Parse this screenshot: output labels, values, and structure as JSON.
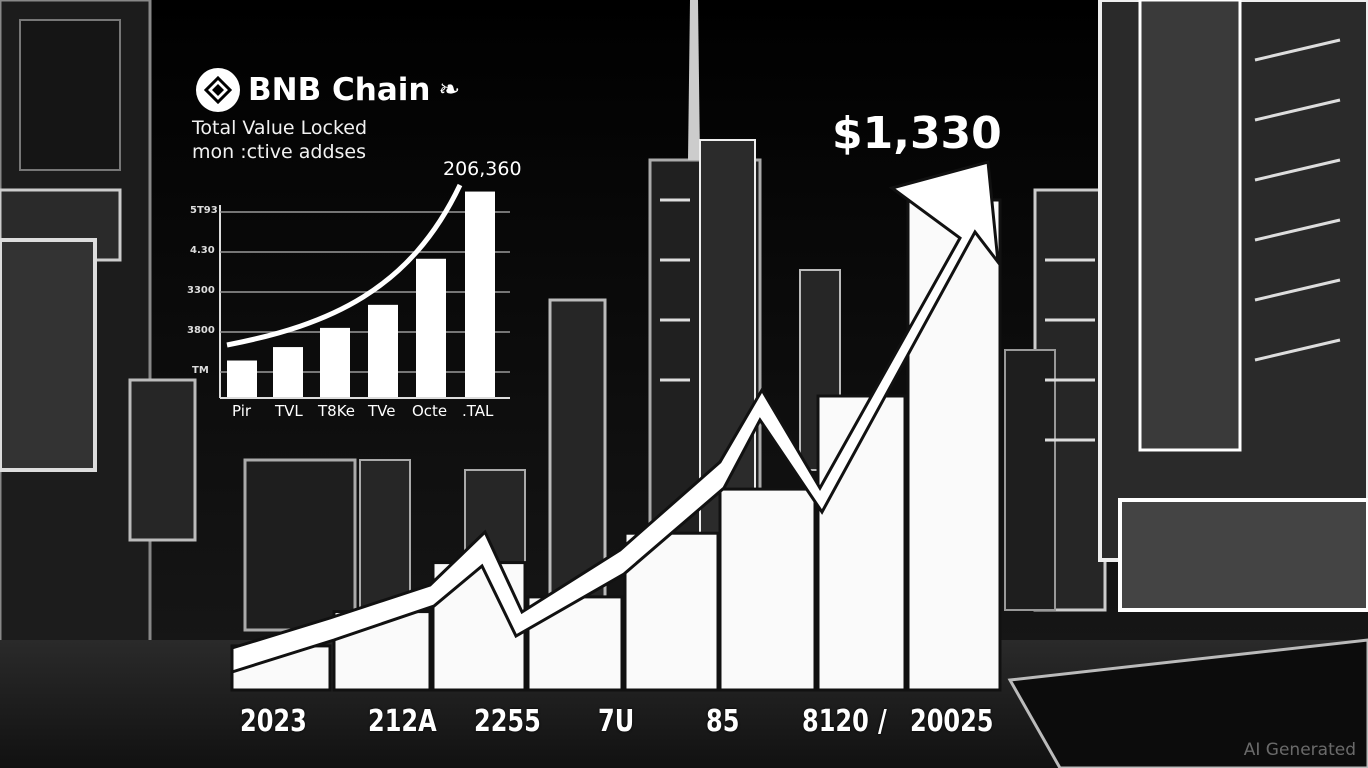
{
  "brand": {
    "name": "BNB Chain",
    "logo_icon": "bnb-diamond-logo",
    "accent": "#ffffff"
  },
  "subtitle_lines": [
    "Total Value Locked",
    "mon :ctive addses"
  ],
  "price_label": "$1,330",
  "small_chart": {
    "peak_label": "206,360",
    "y_ticks": [
      "5T93",
      "4.30",
      "3300",
      "3800",
      "TM"
    ],
    "categories": [
      "Pir",
      "TVL",
      "T8Ke",
      "TVe",
      "Octe",
      ".TAL"
    ],
    "bar_levels": [
      0.19,
      0.26,
      0.36,
      0.48,
      0.72,
      1.07
    ],
    "grid": true
  },
  "big_chart": {
    "x_labels": [
      "2023",
      "212A",
      "2255",
      "7U",
      "85",
      "8120",
      "/",
      "20025"
    ],
    "column_levels": [
      0.09,
      0.16,
      0.26,
      0.19,
      0.32,
      0.41,
      0.6,
      1.0
    ],
    "trend": "rising arrow"
  },
  "watermark": "AI Generated",
  "colors": {
    "background": "#050505",
    "foreground": "#ffffff"
  }
}
